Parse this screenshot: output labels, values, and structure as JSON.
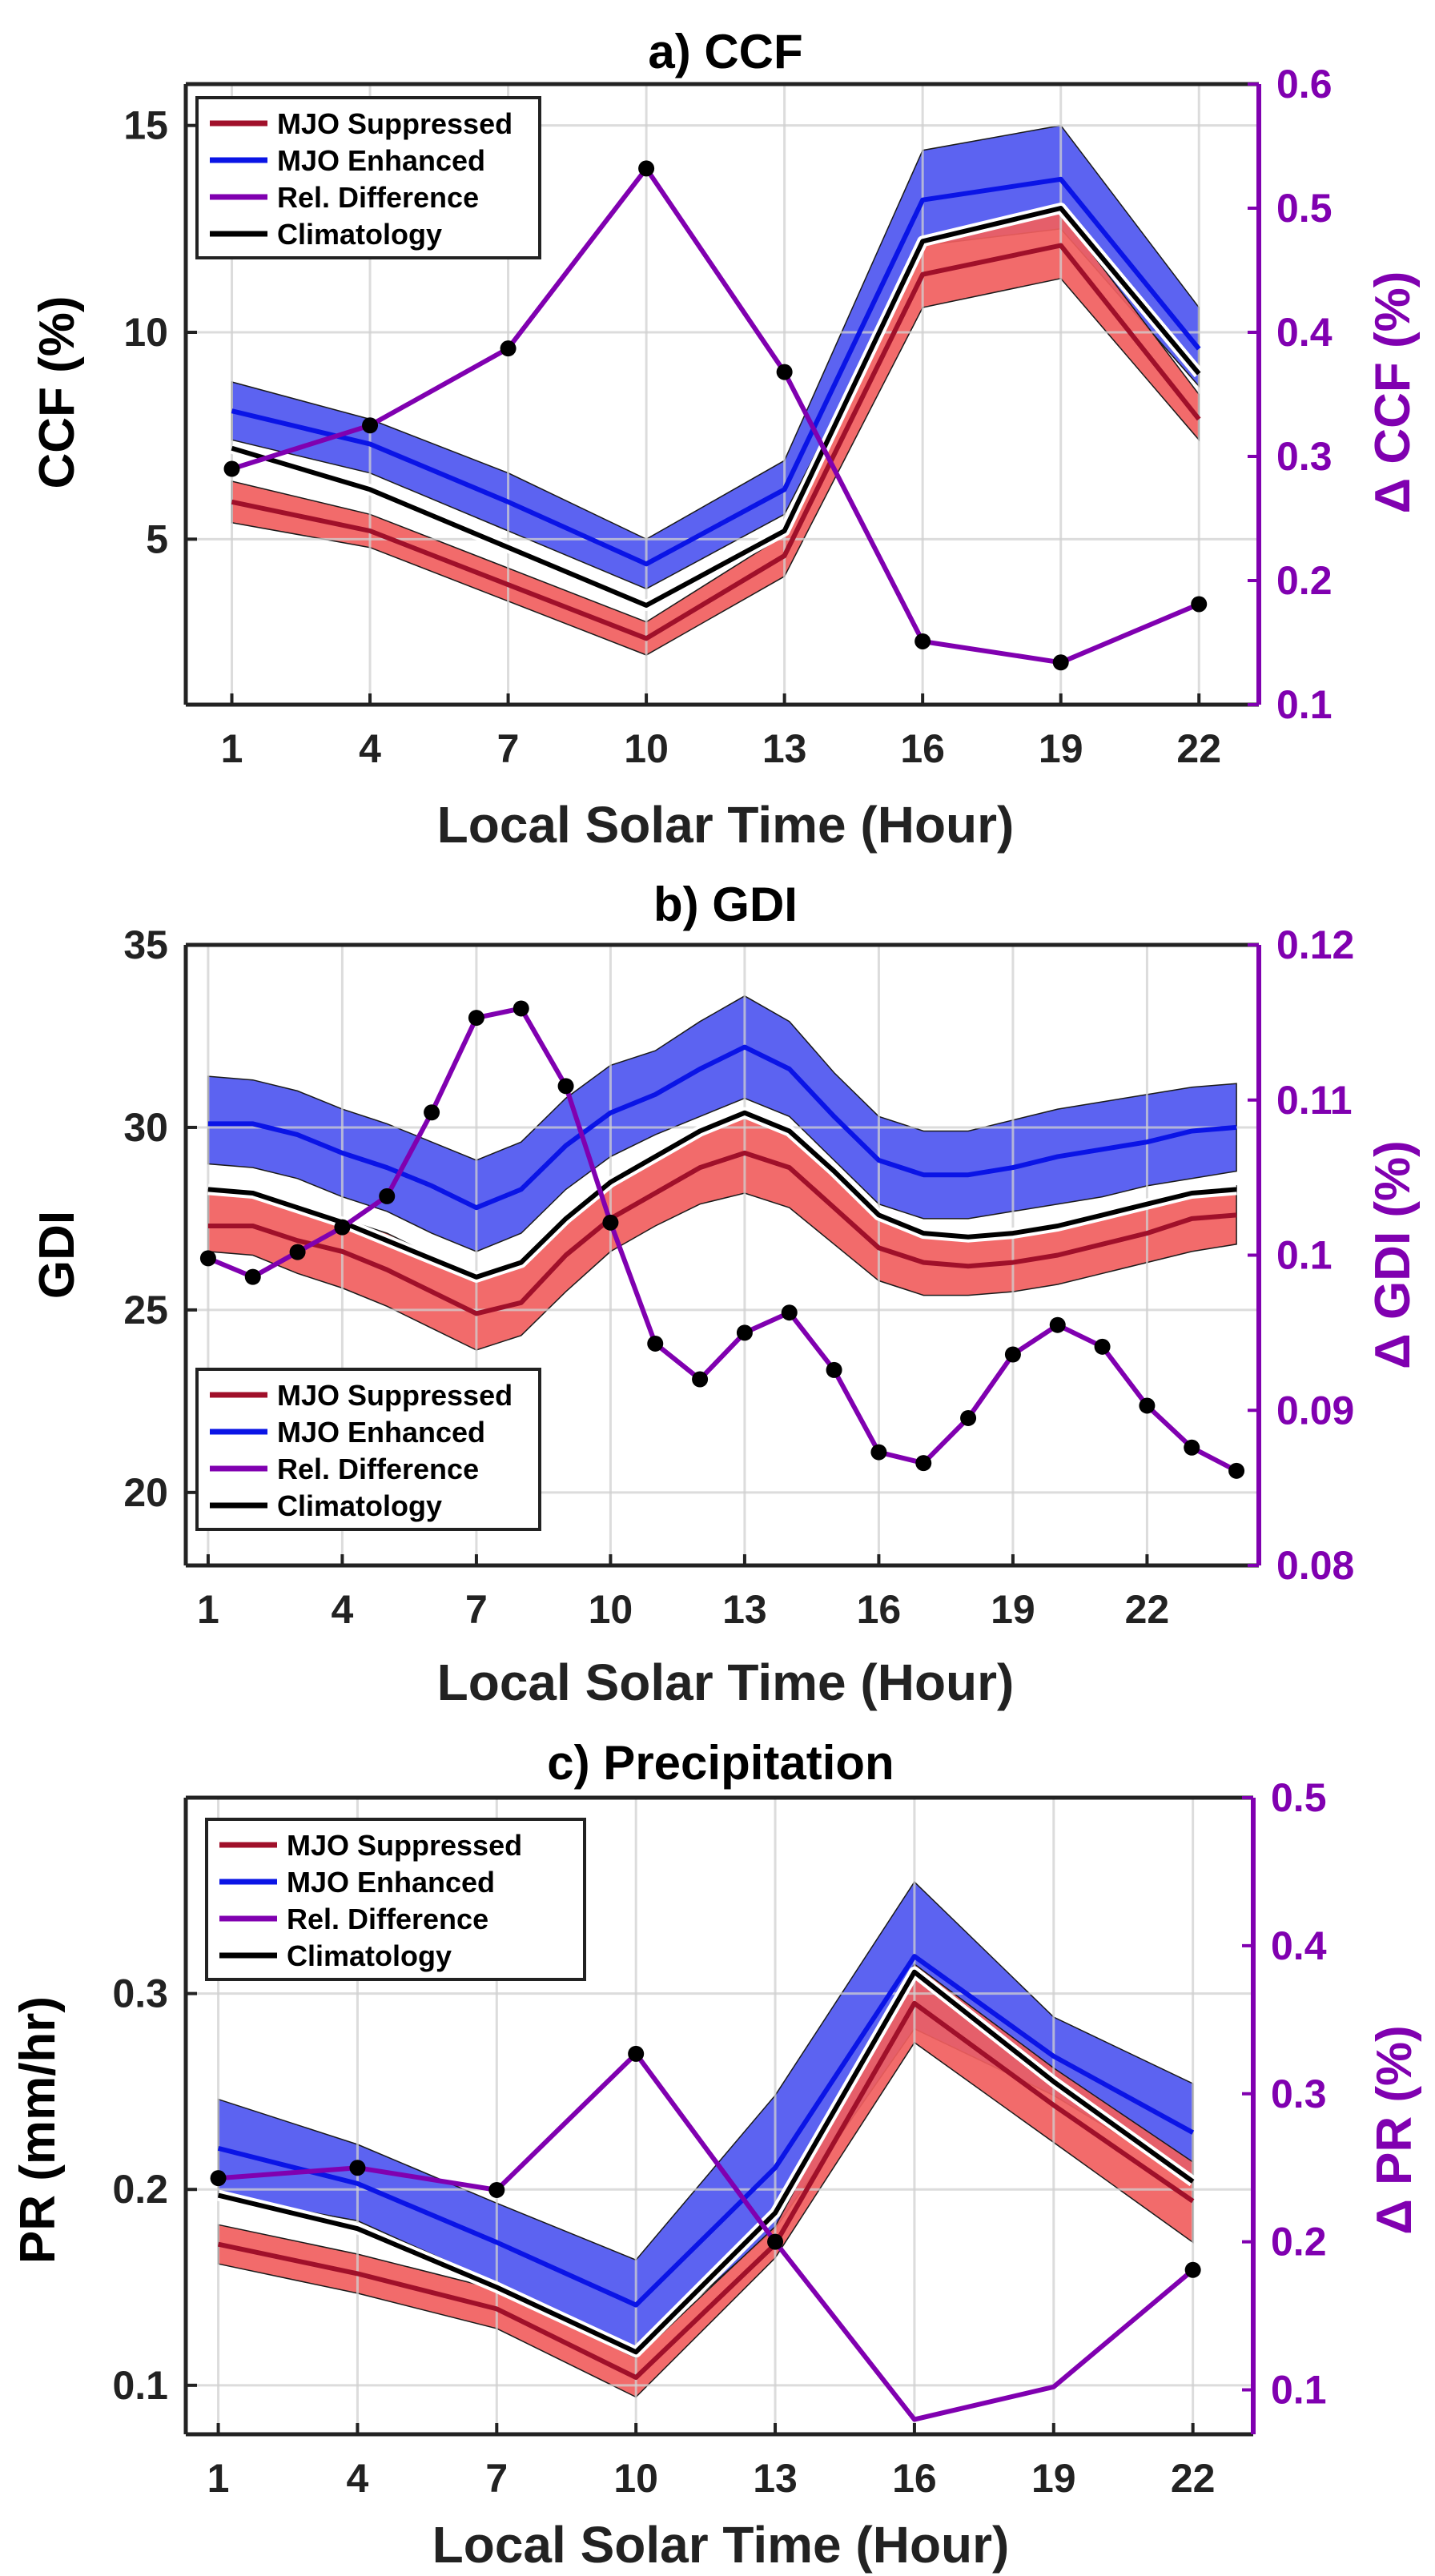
{
  "colors": {
    "suppressed": "#a0102a",
    "suppressed_band": "#f15e5e",
    "enhanced": "#0a14e6",
    "enhanced_band": "#4a52f0",
    "rel_diff": "#8000b0",
    "climatology": "#000000",
    "grid": "#d0d0d0"
  },
  "chart_data": [
    {
      "type": "line",
      "title": "a) CCF",
      "xlabel": "Local Solar Time (Hour)",
      "ylabel": "CCF (%)",
      "y2label": "Δ CCF (%)",
      "xlim": [
        0,
        23.3
      ],
      "ylim": [
        1,
        16
      ],
      "y2lim": [
        0.1,
        0.6
      ],
      "xticks": [
        1,
        4,
        7,
        10,
        13,
        16,
        19,
        22
      ],
      "yticks": [
        5,
        10,
        15
      ],
      "y2ticks": [
        0.1,
        0.2,
        0.3,
        0.4,
        0.5,
        0.6
      ],
      "y2ticklabels": [
        "0.1",
        "0.2",
        "0.3",
        "0.4",
        "0.5",
        "0.6"
      ],
      "legend_position": "top-left",
      "legend_entries": [
        "MJO Suppressed",
        "MJO Enhanced",
        "Rel. Difference",
        "Climatology"
      ],
      "x": [
        1,
        4,
        7,
        10,
        13,
        16,
        19,
        22
      ],
      "suppressed": {
        "mean": [
          5.9,
          5.2,
          3.9,
          2.6,
          4.6,
          11.4,
          12.1,
          7.9
        ],
        "lower": [
          5.4,
          4.8,
          3.5,
          2.2,
          4.1,
          10.6,
          11.3,
          7.4
        ],
        "upper": [
          6.4,
          5.6,
          4.3,
          3.0,
          5.1,
          12.2,
          12.9,
          8.5
        ]
      },
      "enhanced": {
        "mean": [
          8.1,
          7.3,
          5.9,
          4.4,
          6.2,
          13.2,
          13.7,
          9.6
        ],
        "lower": [
          7.4,
          6.6,
          5.2,
          3.8,
          5.6,
          12.1,
          12.5,
          8.7
        ],
        "upper": [
          8.8,
          7.9,
          6.6,
          5.0,
          6.9,
          14.4,
          15.0,
          10.6
        ]
      },
      "climatology": [
        7.2,
        6.2,
        4.8,
        3.4,
        5.2,
        12.2,
        13.0,
        9.0
      ],
      "rel_diff": [
        0.29,
        0.325,
        0.387,
        0.532,
        0.368,
        0.151,
        0.134,
        0.181
      ]
    },
    {
      "type": "line",
      "title": "b) GDI",
      "xlabel": "Local Solar Time (Hour)",
      "ylabel": "GDI",
      "y2label": "Δ GDI (%)",
      "xlim": [
        0.5,
        24.5
      ],
      "ylim": [
        18,
        35
      ],
      "y2lim": [
        0.08,
        0.12
      ],
      "xticks": [
        1,
        4,
        7,
        10,
        13,
        16,
        19,
        22
      ],
      "yticks": [
        20,
        25,
        30,
        35
      ],
      "y2ticks": [
        0.08,
        0.09,
        0.1,
        0.11,
        0.12
      ],
      "y2ticklabels": [
        "0.08",
        "0.09",
        "0.1",
        "0.11",
        "0.12"
      ],
      "legend_position": "bottom-left",
      "legend_entries": [
        "MJO Suppressed",
        "MJO Enhanced",
        "Rel. Difference",
        "Climatology"
      ],
      "x": [
        1,
        2,
        3,
        4,
        5,
        6,
        7,
        8,
        9,
        10,
        11,
        12,
        13,
        14,
        15,
        16,
        17,
        18,
        19,
        20,
        21,
        22,
        23,
        24
      ],
      "suppressed": {
        "mean": [
          27.3,
          27.3,
          26.9,
          26.6,
          26.1,
          25.5,
          24.9,
          25.2,
          26.5,
          27.5,
          28.2,
          28.9,
          29.3,
          28.9,
          27.8,
          26.7,
          26.3,
          26.2,
          26.3,
          26.5,
          26.8,
          27.1,
          27.5,
          27.6
        ],
        "lower": [
          26.6,
          26.5,
          26.0,
          25.6,
          25.1,
          24.5,
          23.9,
          24.3,
          25.5,
          26.6,
          27.3,
          27.9,
          28.2,
          27.8,
          26.8,
          25.8,
          25.4,
          25.4,
          25.5,
          25.7,
          26.0,
          26.3,
          26.6,
          26.8
        ],
        "upper": [
          28.3,
          28.2,
          27.8,
          27.5,
          27.1,
          26.5,
          25.9,
          26.2,
          27.4,
          28.6,
          29.2,
          29.8,
          30.3,
          29.9,
          28.8,
          27.6,
          27.2,
          27.1,
          27.2,
          27.4,
          27.7,
          28.0,
          28.3,
          28.4
        ]
      },
      "enhanced": {
        "mean": [
          30.1,
          30.1,
          29.8,
          29.3,
          28.9,
          28.4,
          27.8,
          28.3,
          29.5,
          30.4,
          30.9,
          31.6,
          32.2,
          31.6,
          30.3,
          29.1,
          28.7,
          28.7,
          28.9,
          29.2,
          29.4,
          29.6,
          29.9,
          30.0
        ],
        "lower": [
          29.0,
          28.9,
          28.6,
          28.1,
          27.7,
          27.1,
          26.6,
          27.1,
          28.3,
          29.2,
          29.8,
          30.3,
          30.8,
          30.3,
          29.1,
          27.9,
          27.5,
          27.5,
          27.7,
          27.9,
          28.1,
          28.4,
          28.6,
          28.8
        ],
        "upper": [
          31.4,
          31.3,
          31.0,
          30.5,
          30.1,
          29.6,
          29.1,
          29.6,
          30.8,
          31.7,
          32.1,
          32.9,
          33.6,
          32.9,
          31.5,
          30.3,
          29.9,
          29.9,
          30.2,
          30.5,
          30.7,
          30.9,
          31.1,
          31.2
        ]
      },
      "climatology": [
        28.3,
        28.2,
        27.8,
        27.4,
        26.9,
        26.4,
        25.9,
        26.3,
        27.5,
        28.5,
        29.2,
        29.9,
        30.4,
        29.9,
        28.8,
        27.6,
        27.1,
        27.0,
        27.1,
        27.3,
        27.6,
        27.9,
        28.2,
        28.3
      ],
      "rel_diff": [
        0.0998,
        0.0986,
        0.1002,
        0.1018,
        0.1038,
        0.1092,
        0.1153,
        0.1159,
        0.1109,
        0.1021,
        0.0943,
        0.092,
        0.095,
        0.0963,
        0.0926,
        0.0873,
        0.0866,
        0.0895,
        0.0936,
        0.0955,
        0.0941,
        0.0903,
        0.0876,
        0.0861
      ]
    },
    {
      "type": "line",
      "title": "c) Precipitation",
      "xlabel": "Local Solar Time (Hour)",
      "ylabel": "PR (mm/hr)",
      "y2label": "Δ PR (%)",
      "xlim": [
        0.3,
        23.3
      ],
      "ylim": [
        0.075,
        0.4
      ],
      "y2lim": [
        0.07,
        0.5
      ],
      "xticks": [
        1,
        4,
        7,
        10,
        13,
        16,
        19,
        22
      ],
      "yticks": [
        0.1,
        0.2,
        0.3
      ],
      "y2ticks": [
        0.1,
        0.2,
        0.3,
        0.4,
        0.5
      ],
      "y2ticklabels": [
        "0.1",
        "0.2",
        "0.3",
        "0.4",
        "0.5"
      ],
      "legend_position": "top-left",
      "legend_entries": [
        "MJO Suppressed",
        "MJO Enhanced",
        "Rel. Difference",
        "Climatology"
      ],
      "x": [
        1,
        4,
        7,
        10,
        13,
        16,
        19,
        22
      ],
      "suppressed": {
        "mean": [
          0.172,
          0.157,
          0.139,
          0.104,
          0.172,
          0.295,
          0.243,
          0.194
        ],
        "lower": [
          0.162,
          0.147,
          0.129,
          0.094,
          0.165,
          0.275,
          0.224,
          0.173
        ],
        "upper": [
          0.182,
          0.167,
          0.149,
          0.114,
          0.181,
          0.315,
          0.262,
          0.214
        ]
      },
      "enhanced": {
        "mean": [
          0.221,
          0.203,
          0.173,
          0.141,
          0.211,
          0.319,
          0.268,
          0.229
        ],
        "lower": [
          0.197,
          0.184,
          0.152,
          0.117,
          0.18,
          0.282,
          0.248,
          0.205
        ],
        "upper": [
          0.246,
          0.223,
          0.193,
          0.164,
          0.248,
          0.357,
          0.288,
          0.254
        ]
      },
      "climatology": [
        0.197,
        0.18,
        0.15,
        0.117,
        0.188,
        0.311,
        0.255,
        0.204
      ],
      "rel_diff": [
        0.243,
        0.25,
        0.235,
        0.327,
        0.2,
        0.08,
        0.102,
        0.181
      ]
    }
  ]
}
